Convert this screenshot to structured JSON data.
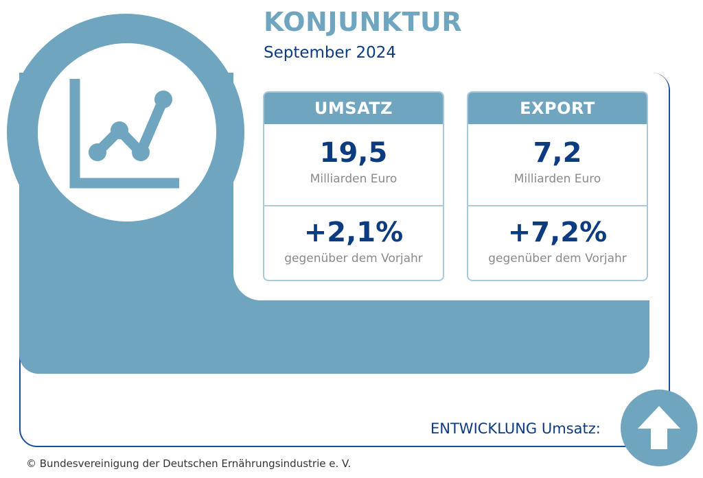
{
  "header": {
    "title": "KONJUNKTUR",
    "subtitle": "September 2024"
  },
  "colors": {
    "accent": "#6fa5bf",
    "navy": "#0d3b80",
    "gray_text": "#8a8a8a"
  },
  "icons": {
    "main": "line-chart-icon",
    "trend": "arrow-up-icon"
  },
  "cards": {
    "umsatz": {
      "header": "UMSATZ",
      "value": "19,5",
      "value_unit": "Milliarden Euro",
      "change": "+2,1%",
      "change_label": "gegenüber dem Vorjahr"
    },
    "export": {
      "header": "EXPORT",
      "value": "7,2",
      "value_unit": "Milliarden Euro",
      "change": "+7,2%",
      "change_label": "gegenüber dem Vorjahr"
    }
  },
  "trend": {
    "label": "ENTWICKLUNG Umsatz:",
    "direction": "up"
  },
  "footer": {
    "copyright": "© Bundesvereinigung der Deutschen Ernährungsindustrie e. V."
  }
}
